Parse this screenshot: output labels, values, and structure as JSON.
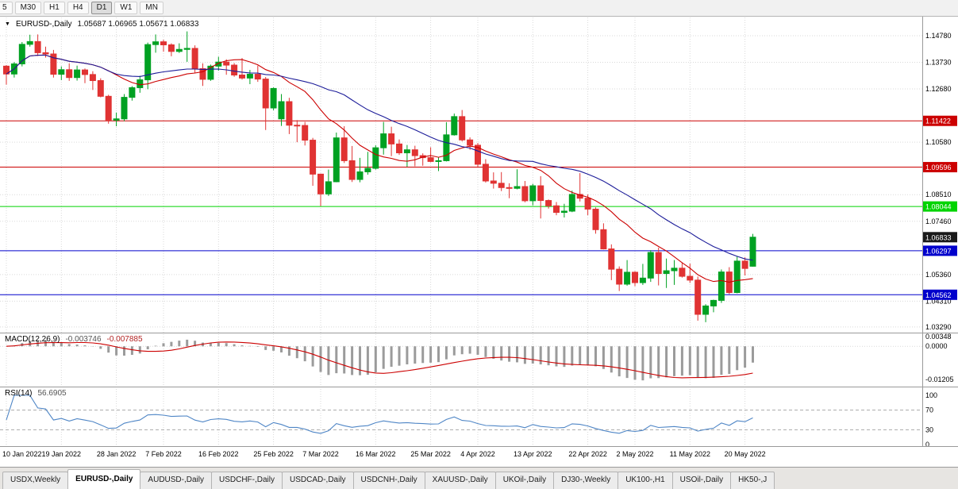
{
  "toolbar": {
    "timeframes": [
      "5",
      "M30",
      "H1",
      "H4",
      "D1",
      "W1",
      "MN"
    ],
    "active_timeframe": "D1"
  },
  "colors": {
    "up": "#00a122",
    "down": "#e03333",
    "grid": "#d9d9d9",
    "axis_text": "#000000"
  },
  "chart_data": {
    "type": "candlestick",
    "collapse_icon": "▼",
    "title": "EURUSD-,Daily",
    "ohlc_text": "1.05687 1.06965 1.05671 1.06833",
    "current_bar_ohlc": [
      1.05687,
      1.06965,
      1.05671,
      1.06833
    ],
    "price_range_hint": [
      1.031,
      1.155
    ],
    "y_axis_labels": [
      "1.14780",
      "1.13730",
      "1.12680",
      "1.10580",
      "1.08510",
      "1.07460",
      "1.05360",
      "1.04310",
      "1.03290"
    ],
    "x_labels": [
      {
        "text": "10 Jan 2022",
        "index": 0
      },
      {
        "text": "19 Jan 2022",
        "index": 7
      },
      {
        "text": "28 Jan 2022",
        "index": 14
      },
      {
        "text": "7 Feb 2022",
        "index": 20
      },
      {
        "text": "16 Feb 2022",
        "index": 27
      },
      {
        "text": "25 Feb 2022",
        "index": 34
      },
      {
        "text": "7 Mar 2022",
        "index": 40
      },
      {
        "text": "16 Mar 2022",
        "index": 47
      },
      {
        "text": "25 Mar 2022",
        "index": 54
      },
      {
        "text": "4 Apr 2022",
        "index": 60
      },
      {
        "text": "13 Apr 2022",
        "index": 67
      },
      {
        "text": "22 Apr 2022",
        "index": 74
      },
      {
        "text": "2 May 2022",
        "index": 80
      },
      {
        "text": "11 May 2022",
        "index": 87
      },
      {
        "text": "20 May 2022",
        "index": 94
      }
    ],
    "price_lines": [
      {
        "label": "1.11422",
        "value": 1.11422,
        "color": "#cc0000"
      },
      {
        "label": "1.09596",
        "value": 1.09596,
        "color": "#cc0000"
      },
      {
        "label": "1.08044",
        "value": 1.08044,
        "color": "#00d400"
      },
      {
        "label": "1.06297",
        "value": 1.06297,
        "color": "#0000cc"
      },
      {
        "label": "1.04562",
        "value": 1.04562,
        "color": "#0000cc"
      }
    ],
    "current_price": {
      "label": "1.06833",
      "value": 1.06833,
      "color": "#1a1a1a"
    },
    "overlays": [
      {
        "name": "fast-ma",
        "color": "#cc0000",
        "period": 13
      },
      {
        "name": "slow-ma",
        "color": "#1c1c99",
        "period": 26
      }
    ],
    "indicators": [
      {
        "type": "MACD",
        "params": [
          12,
          26,
          9
        ],
        "display": "MACD(12,26,9)",
        "value_main": "-0.003746",
        "value_signal": "-0.007885",
        "axis_labels": [
          "0.00348",
          "0.0000",
          "-0.01205"
        ],
        "histogram_color": "#9b9b9b",
        "signal_color": "#cc0000"
      },
      {
        "type": "RSI",
        "params": [
          14
        ],
        "display": "RSI(14)",
        "value": "56.6905",
        "axis_labels": [
          "100",
          "70",
          "30",
          "0"
        ],
        "levels": [
          70,
          30
        ],
        "line_color": "#4f86c6"
      }
    ],
    "candles": [
      [
        1.1358,
        1.1362,
        1.1285,
        1.1327
      ],
      [
        1.1327,
        1.1374,
        1.1313,
        1.1367
      ],
      [
        1.1367,
        1.1453,
        1.1357,
        1.1444
      ],
      [
        1.1444,
        1.1482,
        1.1435,
        1.1455
      ],
      [
        1.1455,
        1.1483,
        1.1398,
        1.1411
      ],
      [
        1.1411,
        1.1435,
        1.1392,
        1.1406
      ],
      [
        1.1406,
        1.1422,
        1.1313,
        1.1326
      ],
      [
        1.1326,
        1.1357,
        1.1303,
        1.1344
      ],
      [
        1.1344,
        1.1369,
        1.13,
        1.1313
      ],
      [
        1.1313,
        1.136,
        1.1301,
        1.1343
      ],
      [
        1.1343,
        1.1349,
        1.1291,
        1.1325
      ],
      [
        1.1325,
        1.1338,
        1.1264,
        1.1301
      ],
      [
        1.1301,
        1.131,
        1.1235,
        1.1239
      ],
      [
        1.1239,
        1.1245,
        1.1131,
        1.1145
      ],
      [
        1.1145,
        1.1175,
        1.1121,
        1.115
      ],
      [
        1.115,
        1.1248,
        1.1141,
        1.1235
      ],
      [
        1.1235,
        1.1279,
        1.1222,
        1.1273
      ],
      [
        1.1273,
        1.132,
        1.1253,
        1.1304
      ],
      [
        1.1304,
        1.1451,
        1.1267,
        1.1443
      ],
      [
        1.1443,
        1.1483,
        1.1411,
        1.1454
      ],
      [
        1.1454,
        1.1462,
        1.1415,
        1.1442
      ],
      [
        1.1442,
        1.1448,
        1.1397,
        1.1416
      ],
      [
        1.1416,
        1.1448,
        1.141,
        1.1424
      ],
      [
        1.1424,
        1.1495,
        1.1375,
        1.1428
      ],
      [
        1.1428,
        1.144,
        1.133,
        1.1348
      ],
      [
        1.1348,
        1.1369,
        1.128,
        1.1306
      ],
      [
        1.1306,
        1.1364,
        1.13,
        1.1358
      ],
      [
        1.1358,
        1.1395,
        1.134,
        1.1374
      ],
      [
        1.1374,
        1.1385,
        1.1324,
        1.1362
      ],
      [
        1.1362,
        1.137,
        1.1316,
        1.1323
      ],
      [
        1.1323,
        1.139,
        1.1305,
        1.1311
      ],
      [
        1.1311,
        1.1343,
        1.1287,
        1.1326
      ],
      [
        1.1326,
        1.136,
        1.1296,
        1.1307
      ],
      [
        1.1307,
        1.1315,
        1.1106,
        1.1193
      ],
      [
        1.1193,
        1.1274,
        1.1184,
        1.127
      ],
      [
        1.115,
        1.1248,
        1.1122,
        1.1218
      ],
      [
        1.1218,
        1.1233,
        1.109,
        1.1125
      ],
      [
        1.1125,
        1.1145,
        1.1058,
        1.1124
      ],
      [
        1.1124,
        1.1138,
        1.1045,
        1.1066
      ],
      [
        1.1066,
        1.1075,
        1.0886,
        1.0932
      ],
      [
        1.0932,
        1.0934,
        1.0806,
        1.0854
      ],
      [
        1.0854,
        1.095,
        1.0846,
        1.0902
      ],
      [
        1.0902,
        1.1096,
        1.09,
        1.1075
      ],
      [
        1.1075,
        1.1121,
        1.0976,
        1.0985
      ],
      [
        1.0985,
        1.1043,
        1.0901,
        1.0911
      ],
      [
        1.0911,
        1.0996,
        1.09,
        1.0941
      ],
      [
        1.0941,
        1.102,
        1.093,
        1.0955
      ],
      [
        1.0955,
        1.1046,
        1.095,
        1.1036
      ],
      [
        1.1036,
        1.1138,
        1.1009,
        1.1091
      ],
      [
        1.1091,
        1.1119,
        1.1003,
        1.1051
      ],
      [
        1.1051,
        1.1069,
        1.1008,
        1.1016
      ],
      [
        1.1016,
        1.1047,
        1.0961,
        1.1028
      ],
      [
        1.1028,
        1.1044,
        1.0963,
        1.1005
      ],
      [
        1.1005,
        1.1014,
        1.0965,
        1.0997
      ],
      [
        1.0997,
        1.1038,
        1.0979,
        1.0982
      ],
      [
        1.0982,
        1.0999,
        1.0944,
        1.0985
      ],
      [
        1.0985,
        1.1137,
        1.0982,
        1.1087
      ],
      [
        1.1087,
        1.1171,
        1.1084,
        1.1159
      ],
      [
        1.1159,
        1.1185,
        1.1061,
        1.1067
      ],
      [
        1.1067,
        1.1077,
        1.1028,
        1.1046
      ],
      [
        1.1046,
        1.1055,
        1.096,
        1.0971
      ],
      [
        1.0971,
        1.0991,
        1.0899,
        1.0905
      ],
      [
        1.0905,
        1.0939,
        1.0875,
        1.0896
      ],
      [
        1.0896,
        1.094,
        1.0865,
        1.0879
      ],
      [
        1.0879,
        1.0896,
        1.0837,
        1.0876
      ],
      [
        1.0876,
        1.0951,
        1.0872,
        1.0883
      ],
      [
        1.0883,
        1.0905,
        1.0821,
        1.0827
      ],
      [
        1.0827,
        1.0894,
        1.0809,
        1.0886
      ],
      [
        1.0886,
        1.0924,
        1.0757,
        1.0828
      ],
      [
        1.0828,
        1.0832,
        1.0796,
        1.0807
      ],
      [
        1.0807,
        1.0822,
        1.077,
        1.0781
      ],
      [
        1.0781,
        1.0815,
        1.0761,
        1.0786
      ],
      [
        1.0786,
        1.0867,
        1.0782,
        1.0852
      ],
      [
        1.0852,
        1.0936,
        1.0824,
        1.0837
      ],
      [
        1.0837,
        1.0852,
        1.077,
        1.0794
      ],
      [
        1.0794,
        1.0801,
        1.0697,
        1.0713
      ],
      [
        1.0713,
        1.0738,
        1.0635,
        1.0637
      ],
      [
        1.0637,
        1.0655,
        1.0514,
        1.0557
      ],
      [
        1.0557,
        1.0568,
        1.0471,
        1.0498
      ],
      [
        1.0498,
        1.0593,
        1.0492,
        1.0545
      ],
      [
        1.0545,
        1.0549,
        1.049,
        1.0504
      ],
      [
        1.0504,
        1.0578,
        1.0495,
        1.0522
      ],
      [
        1.0522,
        1.0632,
        1.0507,
        1.0623
      ],
      [
        1.0623,
        1.0642,
        1.0493,
        1.054
      ],
      [
        1.054,
        1.0599,
        1.0483,
        1.0551
      ],
      [
        1.0551,
        1.0593,
        1.0495,
        1.0561
      ],
      [
        1.0561,
        1.0584,
        1.0524,
        1.0529
      ],
      [
        1.0529,
        1.0579,
        1.0503,
        1.0514
      ],
      [
        1.0514,
        1.0528,
        1.0354,
        1.0379
      ],
      [
        1.0379,
        1.0419,
        1.0348,
        1.0412
      ],
      [
        1.0412,
        1.0437,
        1.0387,
        1.0434
      ],
      [
        1.0434,
        1.0556,
        1.0424,
        1.0546
      ],
      [
        1.0546,
        1.0565,
        1.0459,
        1.0465
      ],
      [
        1.0465,
        1.0607,
        1.0462,
        1.0589
      ],
      [
        1.0589,
        1.0604,
        1.0532,
        1.056
      ],
      [
        1.05687,
        1.06965,
        1.05671,
        1.06833
      ]
    ]
  },
  "tabs": [
    {
      "label": "USDX,Weekly",
      "active": false
    },
    {
      "label": "EURUSD-,Daily",
      "active": true
    },
    {
      "label": "AUDUSD-,Daily",
      "active": false
    },
    {
      "label": "USDCHF-,Daily",
      "active": false
    },
    {
      "label": "USDCAD-,Daily",
      "active": false
    },
    {
      "label": "USDCNH-,Daily",
      "active": false
    },
    {
      "label": "XAUUSD-,Daily",
      "active": false
    },
    {
      "label": "UKOil-,Daily",
      "active": false
    },
    {
      "label": "DJ30-,Weekly",
      "active": false
    },
    {
      "label": "UK100-,H1",
      "active": false
    },
    {
      "label": "USOil-,Daily",
      "active": false
    },
    {
      "label": "HK50-,J",
      "active": false
    }
  ]
}
